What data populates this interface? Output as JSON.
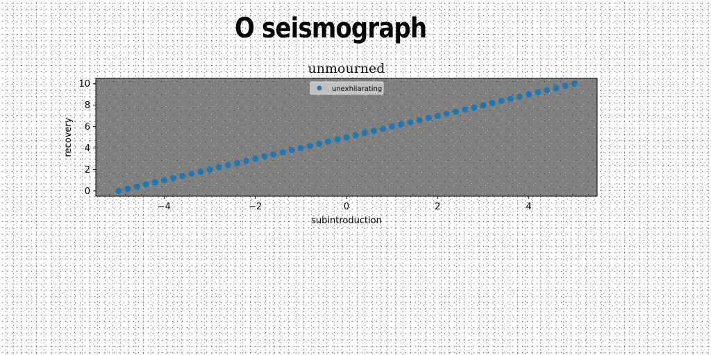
{
  "figure": {
    "suptitle": "O seismograph"
  },
  "chart_data": {
    "type": "scatter",
    "title": "unmourned",
    "xlabel": "subintroduction",
    "ylabel": "recovery",
    "xlim": [
      -5.5,
      5.5
    ],
    "ylim": [
      -0.5,
      10.5
    ],
    "xticks": [
      -4,
      -2,
      0,
      2,
      4
    ],
    "xtick_labels": [
      "−4",
      "−2",
      "0",
      "2",
      "4"
    ],
    "yticks": [
      0,
      2,
      4,
      6,
      8,
      10
    ],
    "ytick_labels": [
      "0",
      "2",
      "4",
      "6",
      "8",
      "10"
    ],
    "grid": false,
    "legend_position": "upper center",
    "axes_facecolor": "#808080",
    "series": [
      {
        "name": "unexhilarating",
        "color": "#1f77b4",
        "marker": "circle",
        "x": [
          -5.0,
          -4.8,
          -4.6,
          -4.4,
          -4.2,
          -4.0,
          -3.8,
          -3.6,
          -3.4,
          -3.2,
          -3.0,
          -2.8,
          -2.6,
          -2.4,
          -2.2,
          -2.0,
          -1.8,
          -1.6,
          -1.4,
          -1.2,
          -1.0,
          -0.8,
          -0.6,
          -0.4,
          -0.2,
          0.0,
          0.2,
          0.4,
          0.6,
          0.8,
          1.0,
          1.2,
          1.4,
          1.6,
          1.8,
          2.0,
          2.2,
          2.4,
          2.6,
          2.8,
          3.0,
          3.2,
          3.4,
          3.6,
          3.8,
          4.0,
          4.2,
          4.4,
          4.6,
          4.8,
          5.0
        ],
        "y": [
          0.0,
          0.2,
          0.4,
          0.6,
          0.8,
          1.0,
          1.2,
          1.4,
          1.6,
          1.8,
          2.0,
          2.2,
          2.4,
          2.6,
          2.8,
          3.0,
          3.2,
          3.4,
          3.6,
          3.8,
          4.0,
          4.2,
          4.4,
          4.6,
          4.8,
          5.0,
          5.2,
          5.4,
          5.6,
          5.8,
          6.0,
          6.2,
          6.4,
          6.6,
          6.8,
          7.0,
          7.2,
          7.4,
          7.6,
          7.8,
          8.0,
          8.2,
          8.4,
          8.6,
          8.8,
          9.0,
          9.2,
          9.4,
          9.6,
          9.8,
          10.0
        ]
      }
    ]
  }
}
